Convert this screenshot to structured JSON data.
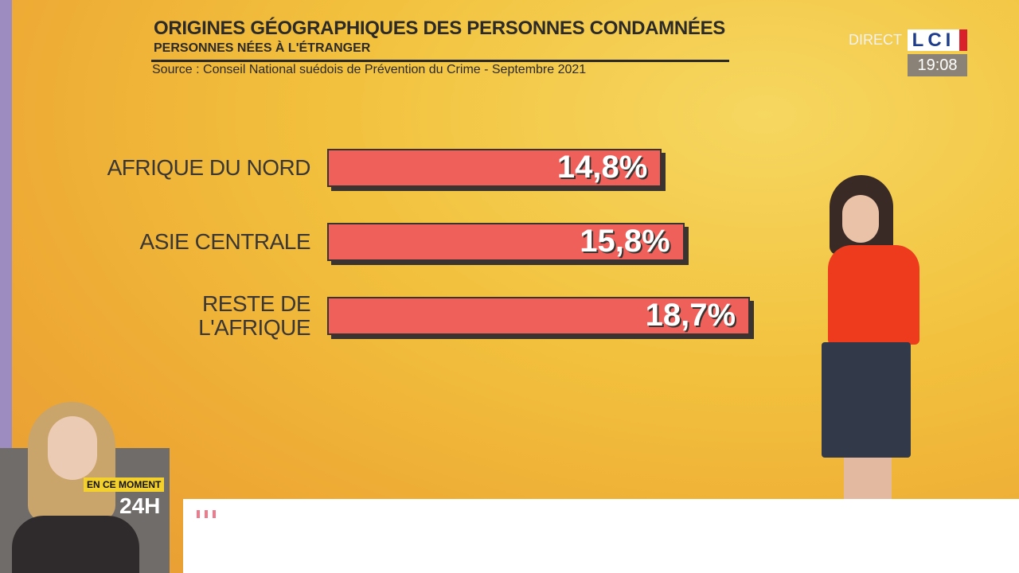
{
  "chart_data": {
    "type": "bar",
    "orientation": "horizontal",
    "title": "ORIGINES GÉOGRAPHIQUES DES PERSONNES CONDAMNÉES",
    "subtitle": "PERSONNES NÉES À L'ÉTRANGER",
    "source": "Source : Conseil National suédois de Prévention du Crime - Septembre 2021",
    "categories": [
      "AFRIQUE DU NORD",
      "ASIE CENTRALE",
      "RESTE DE\nL'AFRIQUE"
    ],
    "values": [
      14.8,
      15.8,
      18.7
    ],
    "value_labels": [
      "14,8%",
      "15,8%",
      "18,7%"
    ],
    "color": "#f0605a"
  },
  "overlay": {
    "live": "DIRECT",
    "channel": "LCI",
    "time": "19:08",
    "badge": "EN CE MOMENT",
    "program": "24H"
  }
}
